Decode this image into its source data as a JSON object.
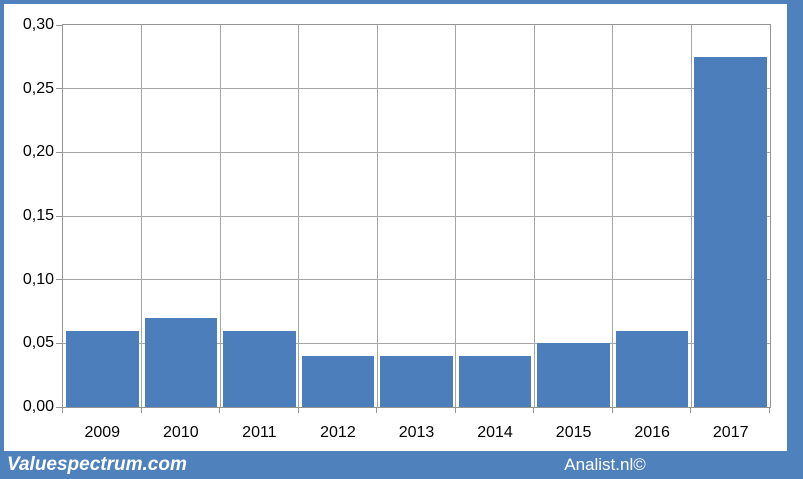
{
  "chart_data": {
    "type": "bar",
    "title": "",
    "categories": [
      "2009",
      "2010",
      "2011",
      "2012",
      "2013",
      "2014",
      "2015",
      "2016",
      "2017"
    ],
    "values": [
      0.06,
      0.07,
      0.06,
      0.04,
      0.04,
      0.04,
      0.05,
      0.06,
      0.275
    ],
    "xlabel": "",
    "ylabel": "",
    "ylim": [
      0,
      0.3
    ],
    "ytick_step": 0.05,
    "ytick_labels": [
      "0,00",
      "0,05",
      "0,10",
      "0,15",
      "0,20",
      "0,25",
      "0,30"
    ],
    "decimal_separator": ",",
    "grid": true,
    "legend_position": "none",
    "bar_color": "#4d7ebc",
    "gridline_color": "#a6a6a6",
    "axis_border_color": "#949494",
    "tick_label_color": "#000000"
  },
  "frame": {
    "border_color": "#4f81bd",
    "chart_background": "#ffffff"
  },
  "footer": {
    "background_color": "#4f81bd",
    "text_color": "#ffffff",
    "left_brand": "Valuespectrum.com",
    "right_brand": "Analist.nl©"
  }
}
